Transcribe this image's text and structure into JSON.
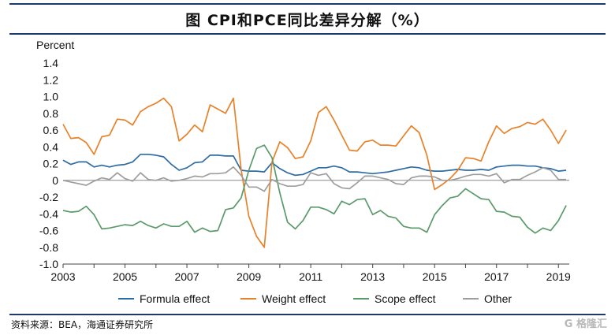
{
  "title": "图  CPI和PCE同比差异分解（%）",
  "source": "资料来源：BEA，海通证券研究所",
  "watermark": "G 格隆汇",
  "chart_data": {
    "type": "line",
    "ylabel": "Percent",
    "ylim": [
      -1.0,
      1.4
    ],
    "yticks": [
      -1.0,
      -0.8,
      -0.6,
      -0.4,
      -0.2,
      0,
      0.2,
      0.4,
      0.6,
      0.8,
      1.0,
      1.2,
      1.4
    ],
    "ytick_labels": [
      "-1.0",
      "-0.8",
      "-0.6",
      "-0.4",
      "-0.2",
      "0",
      "0.2",
      "0.4",
      "0.6",
      "0.8",
      "1.0",
      "1.2",
      "1.4"
    ],
    "xlim": [
      2003,
      2019.35
    ],
    "xticks": [
      2003,
      2005,
      2007,
      2009,
      2011,
      2013,
      2015,
      2017,
      2019
    ],
    "xtick_labels": [
      "2003",
      "2005",
      "2007",
      "2009",
      "2011",
      "2013",
      "2015",
      "2017",
      "2019"
    ],
    "grid": false,
    "legend_position": "bottom",
    "series": [
      {
        "name": "Formula effect",
        "color": "#2e6ca4",
        "x": [
          2003,
          2003.25,
          2003.5,
          2003.75,
          2004,
          2004.25,
          2004.5,
          2004.75,
          2005,
          2005.25,
          2005.5,
          2005.75,
          2006,
          2006.25,
          2006.5,
          2006.75,
          2007,
          2007.25,
          2007.5,
          2007.75,
          2008,
          2008.25,
          2008.5,
          2008.75,
          2009,
          2009.25,
          2009.5,
          2009.75,
          2010,
          2010.25,
          2010.5,
          2010.75,
          2011,
          2011.25,
          2011.5,
          2011.75,
          2012,
          2012.25,
          2012.5,
          2012.75,
          2013,
          2013.25,
          2013.5,
          2013.75,
          2014,
          2014.25,
          2014.5,
          2014.75,
          2015,
          2015.25,
          2015.5,
          2015.75,
          2016,
          2016.25,
          2016.5,
          2016.75,
          2017,
          2017.25,
          2017.5,
          2017.75,
          2018,
          2018.25,
          2018.5,
          2018.75,
          2019,
          2019.25
        ],
        "y": [
          0.24,
          0.19,
          0.22,
          0.22,
          0.16,
          0.18,
          0.16,
          0.18,
          0.19,
          0.22,
          0.31,
          0.31,
          0.3,
          0.28,
          0.19,
          0.12,
          0.15,
          0.21,
          0.22,
          0.3,
          0.3,
          0.29,
          0.29,
          0.12,
          0.11,
          0.11,
          0.1,
          0.21,
          0.14,
          0.09,
          0.06,
          0.07,
          0.11,
          0.15,
          0.15,
          0.17,
          0.15,
          0.1,
          0.1,
          0.09,
          0.08,
          0.09,
          0.1,
          0.12,
          0.14,
          0.16,
          0.15,
          0.12,
          0.11,
          0.11,
          0.12,
          0.13,
          0.12,
          0.12,
          0.13,
          0.12,
          0.16,
          0.17,
          0.18,
          0.18,
          0.17,
          0.17,
          0.15,
          0.14,
          0.11,
          0.12
        ]
      },
      {
        "name": "Weight effect",
        "color": "#e8822a",
        "x": [
          2003,
          2003.25,
          2003.5,
          2003.75,
          2004,
          2004.25,
          2004.5,
          2004.75,
          2005,
          2005.25,
          2005.5,
          2005.75,
          2006,
          2006.25,
          2006.5,
          2006.75,
          2007,
          2007.25,
          2007.5,
          2007.75,
          2008,
          2008.25,
          2008.5,
          2008.75,
          2009,
          2009.25,
          2009.5,
          2009.75,
          2010,
          2010.25,
          2010.5,
          2010.75,
          2011,
          2011.25,
          2011.5,
          2011.75,
          2012,
          2012.25,
          2012.5,
          2012.75,
          2013,
          2013.25,
          2013.5,
          2013.75,
          2014,
          2014.25,
          2014.5,
          2014.75,
          2015,
          2015.25,
          2015.5,
          2015.75,
          2016,
          2016.25,
          2016.5,
          2016.75,
          2017,
          2017.25,
          2017.5,
          2017.75,
          2018,
          2018.25,
          2018.5,
          2018.75,
          2019,
          2019.25
        ],
        "y": [
          0.67,
          0.5,
          0.51,
          0.45,
          0.31,
          0.52,
          0.54,
          0.73,
          0.72,
          0.66,
          0.82,
          0.88,
          0.92,
          0.98,
          0.88,
          0.47,
          0.55,
          0.66,
          0.58,
          0.9,
          0.85,
          0.8,
          0.98,
          0.13,
          -0.43,
          -0.67,
          -0.8,
          0.22,
          0.46,
          0.39,
          0.26,
          0.28,
          0.47,
          0.81,
          0.88,
          0.72,
          0.54,
          0.36,
          0.35,
          0.46,
          0.48,
          0.42,
          0.42,
          0.41,
          0.53,
          0.65,
          0.57,
          0.3,
          -0.11,
          -0.05,
          0.02,
          0.12,
          0.27,
          0.26,
          0.23,
          0.46,
          0.65,
          0.56,
          0.62,
          0.64,
          0.69,
          0.67,
          0.73,
          0.6,
          0.44,
          0.6
        ]
      },
      {
        "name": "Scope effect",
        "color": "#5b9a6a",
        "x": [
          2003,
          2003.25,
          2003.5,
          2003.75,
          2004,
          2004.25,
          2004.5,
          2004.75,
          2005,
          2005.25,
          2005.5,
          2005.75,
          2006,
          2006.25,
          2006.5,
          2006.75,
          2007,
          2007.25,
          2007.5,
          2007.75,
          2008,
          2008.25,
          2008.5,
          2008.75,
          2009,
          2009.25,
          2009.5,
          2009.75,
          2010,
          2010.25,
          2010.5,
          2010.75,
          2011,
          2011.25,
          2011.5,
          2011.75,
          2012,
          2012.25,
          2012.5,
          2012.75,
          2013,
          2013.25,
          2013.5,
          2013.75,
          2014,
          2014.25,
          2014.5,
          2014.75,
          2015,
          2015.25,
          2015.5,
          2015.75,
          2016,
          2016.25,
          2016.5,
          2016.75,
          2017,
          2017.25,
          2017.5,
          2017.75,
          2018,
          2018.25,
          2018.5,
          2018.75,
          2019,
          2019.25
        ],
        "y": [
          -0.36,
          -0.38,
          -0.37,
          -0.31,
          -0.41,
          -0.58,
          -0.57,
          -0.55,
          -0.53,
          -0.54,
          -0.49,
          -0.54,
          -0.57,
          -0.52,
          -0.55,
          -0.55,
          -0.49,
          -0.62,
          -0.57,
          -0.61,
          -0.6,
          -0.35,
          -0.33,
          -0.21,
          0.12,
          0.38,
          0.42,
          0.27,
          -0.15,
          -0.5,
          -0.58,
          -0.48,
          -0.32,
          -0.32,
          -0.35,
          -0.4,
          -0.25,
          -0.29,
          -0.23,
          -0.22,
          -0.41,
          -0.36,
          -0.43,
          -0.45,
          -0.55,
          -0.57,
          -0.57,
          -0.62,
          -0.41,
          -0.3,
          -0.21,
          -0.19,
          -0.1,
          -0.16,
          -0.22,
          -0.23,
          -0.37,
          -0.38,
          -0.43,
          -0.44,
          -0.56,
          -0.63,
          -0.57,
          -0.6,
          -0.48,
          -0.3
        ]
      },
      {
        "name": "Other",
        "color": "#9e9e9e",
        "x": [
          2003,
          2003.25,
          2003.5,
          2003.75,
          2004,
          2004.25,
          2004.5,
          2004.75,
          2005,
          2005.25,
          2005.5,
          2005.75,
          2006,
          2006.25,
          2006.5,
          2006.75,
          2007,
          2007.25,
          2007.5,
          2007.75,
          2008,
          2008.25,
          2008.5,
          2008.75,
          2009,
          2009.25,
          2009.5,
          2009.75,
          2010,
          2010.25,
          2010.5,
          2010.75,
          2011,
          2011.25,
          2011.5,
          2011.75,
          2012,
          2012.25,
          2012.5,
          2012.75,
          2013,
          2013.25,
          2013.5,
          2013.75,
          2014,
          2014.25,
          2014.5,
          2014.75,
          2015,
          2015.25,
          2015.5,
          2015.75,
          2016,
          2016.25,
          2016.5,
          2016.75,
          2017,
          2017.25,
          2017.5,
          2017.75,
          2018,
          2018.25,
          2018.5,
          2018.75,
          2019,
          2019.25
        ],
        "y": [
          0.0,
          -0.02,
          -0.04,
          -0.06,
          -0.01,
          0.03,
          0.01,
          0.09,
          0.02,
          -0.01,
          0.09,
          0.01,
          0.0,
          0.03,
          -0.01,
          0.0,
          0.02,
          0.05,
          0.04,
          0.08,
          0.08,
          0.09,
          0.16,
          0.06,
          -0.08,
          -0.08,
          -0.13,
          0.01,
          -0.04,
          -0.07,
          -0.07,
          -0.05,
          0.09,
          0.06,
          0.08,
          -0.04,
          -0.09,
          -0.1,
          -0.03,
          0.05,
          0.05,
          0.03,
          0.01,
          -0.04,
          -0.05,
          0.03,
          0.05,
          0.05,
          0.04,
          0.0,
          0.0,
          0.02,
          0.05,
          0.07,
          0.07,
          0.05,
          0.08,
          -0.03,
          0.01,
          0.01,
          0.06,
          0.1,
          0.15,
          0.12,
          0.01,
          0.01
        ]
      }
    ]
  }
}
